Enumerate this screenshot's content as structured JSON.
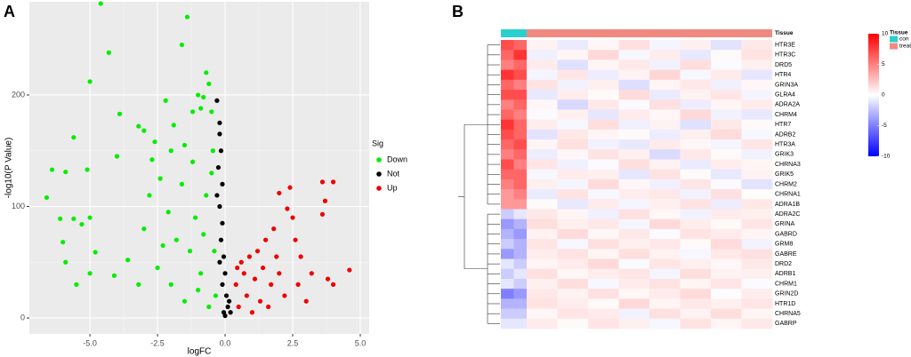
{
  "chart_data": [
    {
      "type": "scatter",
      "panel": "A",
      "xlabel": "logFC",
      "ylabel": "-log10(P Value)",
      "legend_title": "Sig",
      "xlim": [
        -7.24,
        5.33
      ],
      "ylim": [
        -14.3,
        283.6
      ],
      "xticks": [
        {
          "value": -5,
          "label": "-5.0"
        },
        -2.5,
        {
          "value": 0,
          "label": "0.0"
        },
        2.5,
        {
          "value": 5,
          "label": "5.0"
        }
      ],
      "yticks": [
        0,
        100,
        200
      ],
      "grid": true,
      "series": [
        {
          "name": "Down",
          "color": "#00ee00",
          "x": [
            -4.6,
            -4.3,
            -1.4,
            -1.6,
            -0.7,
            -0.6,
            -5.0,
            -3.9,
            -3.2,
            -3.0,
            -2.6,
            -2.2,
            -1.9,
            -1.2,
            -1.0,
            -0.9,
            -0.8,
            -0.5,
            -5.6,
            -6.4,
            -5.1,
            -5.9,
            -4.0,
            -2.7,
            -2.0,
            -1.5,
            -6.6,
            -6.1,
            -5.6,
            -5.3,
            -6.0,
            -5.0,
            -4.8,
            -5.9,
            -5.0,
            -5.5,
            -4.1,
            -3.6,
            -3.0,
            -2.8,
            -2.4,
            -2.1,
            -1.8,
            -1.6,
            -1.3,
            -1.1,
            -0.9,
            -0.7,
            -0.5,
            -0.4,
            -0.35,
            -0.6,
            -1.0,
            -1.5,
            -2.0,
            -2.5,
            -3.2,
            -1.2,
            -0.45,
            -2.3,
            -0.8
          ],
          "values": [
            282,
            238,
            270,
            245,
            220,
            210,
            212,
            183,
            172,
            168,
            158,
            195,
            173,
            185,
            200,
            188,
            198,
            185,
            162,
            133,
            133,
            131,
            145,
            142,
            150,
            155,
            108,
            89,
            89,
            84,
            68,
            90,
            59,
            50,
            40,
            30,
            38,
            52,
            80,
            110,
            125,
            95,
            70,
            120,
            60,
            90,
            40,
            110,
            130,
            60,
            20,
            10,
            25,
            15,
            30,
            45,
            30,
            140,
            150,
            65,
            75
          ]
        },
        {
          "name": "Not",
          "color": "#000000",
          "x": [
            -0.3,
            -0.2,
            -0.2,
            -0.15,
            -0.25,
            -0.1,
            -0.2,
            -0.1,
            -0.15,
            -0.05,
            0.0,
            -0.1,
            0.05,
            0.1,
            -0.05,
            0.15,
            0.2,
            0.0,
            -0.2,
            -0.3
          ],
          "values": [
            195,
            175,
            165,
            150,
            135,
            120,
            100,
            85,
            70,
            55,
            40,
            30,
            20,
            10,
            5,
            15,
            5,
            2,
            50,
            110
          ]
        },
        {
          "name": "Up",
          "color": "#ee0000",
          "x": [
            3.6,
            4.0,
            3.7,
            2.4,
            2.0,
            3.6,
            2.3,
            2.5,
            4.6,
            3.8,
            4.0,
            3.2,
            2.8,
            2.6,
            1.8,
            1.5,
            1.2,
            0.9,
            0.6,
            0.4,
            0.5,
            0.8,
            1.1,
            1.4,
            1.7,
            2.0,
            2.2,
            1.6,
            1.0,
            0.7,
            1.3,
            2.7,
            3.0,
            0.45,
            1.9
          ],
          "values": [
            122,
            122,
            105,
            117,
            112,
            93,
            98,
            90,
            43,
            35,
            30,
            40,
            55,
            70,
            80,
            70,
            60,
            55,
            50,
            30,
            10,
            20,
            35,
            45,
            30,
            40,
            20,
            10,
            5,
            40,
            15,
            30,
            15,
            45,
            55
          ]
        }
      ]
    },
    {
      "type": "heatmap",
      "panel": "B",
      "rows": [
        "HTR3E",
        "HTR3C",
        "DRD5",
        "HTR4",
        "GRIN3A",
        "GLRA4",
        "ADRA2A",
        "CHRM4",
        "HTR7",
        "ADRB2",
        "HTR3A",
        "GRIK3",
        "CHRNA3",
        "GRIK5",
        "CHRM2",
        "CHRNA1",
        "ADRA1B",
        "ADRA2C",
        "GRINA",
        "GABRD",
        "GRM8",
        "GABRE",
        "DRD2",
        "ADRB1",
        "CHRM1",
        "GRIN2D",
        "HTR1D",
        "CHRNA5",
        "GABRP"
      ],
      "annotation": {
        "title": "Tissue",
        "levels": [
          {
            "name": "con",
            "color": "#2ad0d0"
          },
          {
            "name": "treat",
            "color": "#f08a80"
          }
        ],
        "columns": [
          "con",
          "con",
          "treat",
          "treat",
          "treat",
          "treat",
          "treat",
          "treat",
          "treat",
          "treat"
        ]
      },
      "clim": [
        -10,
        10
      ],
      "cticks": [
        10,
        5,
        0,
        -5,
        -10
      ],
      "colors": [
        "#0000ff",
        "#ffffff",
        "#ff0000"
      ],
      "values": [
        [
          7,
          6,
          0.5,
          -0.8,
          0.3,
          1.2,
          -0.4,
          0.6,
          -1.1,
          0.9
        ],
        [
          6,
          8,
          -0.6,
          0.4,
          1.5,
          -0.3,
          0.7,
          -0.9,
          0.2,
          1.1
        ],
        [
          5,
          6,
          0.8,
          -1.2,
          0.4,
          0.9,
          -0.5,
          1.3,
          -0.2,
          0.6
        ],
        [
          8,
          7,
          -0.4,
          1.0,
          -0.7,
          0.5,
          1.6,
          -0.3,
          0.8,
          -1.0
        ],
        [
          6,
          5,
          1.1,
          -0.5,
          0.6,
          -1.3,
          0.4,
          0.9,
          -0.6,
          0.3
        ],
        [
          7,
          7,
          -0.9,
          0.7,
          0.2,
          1.4,
          -0.8,
          0.5,
          1.0,
          -0.4
        ],
        [
          5,
          6,
          0.3,
          -1.5,
          0.9,
          -0.2,
          1.2,
          -0.7,
          0.4,
          0.8
        ],
        [
          6,
          5,
          -0.2,
          0.6,
          -1.0,
          0.8,
          0.3,
          1.5,
          -0.5,
          -0.9
        ],
        [
          8,
          6,
          0.7,
          -0.3,
          1.3,
          -0.6,
          0.5,
          -1.2,
          0.9,
          0.2
        ],
        [
          7,
          6,
          -1.1,
          0.9,
          0.4,
          0.2,
          -0.7,
          0.6,
          1.4,
          -0.3
        ],
        [
          6,
          7,
          0.4,
          1.2,
          -0.5,
          -0.9,
          0.8,
          0.3,
          -0.4,
          1.0
        ],
        [
          5,
          6,
          -0.7,
          0.3,
          1.1,
          0.6,
          -1.4,
          0.9,
          0.2,
          -0.5
        ],
        [
          7,
          5,
          1.0,
          -0.6,
          -0.2,
          1.3,
          0.5,
          -0.8,
          0.7,
          0.4
        ],
        [
          6,
          6,
          -0.3,
          0.8,
          0.6,
          -1.0,
          1.1,
          0.2,
          -0.9,
          0.5
        ],
        [
          5,
          6,
          0.6,
          -0.4,
          1.4,
          0.3,
          -0.6,
          1.0,
          -0.2,
          -1.1
        ],
        [
          4,
          5,
          -0.8,
          1.1,
          -0.3,
          0.7,
          0.9,
          -0.5,
          1.2,
          0.1
        ],
        [
          4,
          4,
          0.2,
          -0.9,
          0.8,
          -0.4,
          0.6,
          1.1,
          -0.7,
          0.9
        ],
        [
          -2,
          -1,
          0.9,
          0.4,
          -0.6,
          1.2,
          0.3,
          -0.5,
          0.8,
          0.6
        ],
        [
          -4,
          -3,
          1.3,
          0.6,
          0.9,
          -0.4,
          1.5,
          0.7,
          0.2,
          1.0
        ],
        [
          -3,
          -4,
          0.5,
          1.4,
          0.3,
          0.9,
          -0.2,
          1.1,
          0.8,
          0.4
        ],
        [
          -2,
          -3,
          1.0,
          -0.3,
          1.2,
          0.6,
          0.9,
          0.2,
          1.4,
          -0.5
        ],
        [
          -4,
          -3,
          0.7,
          1.1,
          0.4,
          1.3,
          0.5,
          -0.3,
          0.9,
          1.2
        ],
        [
          -1,
          -2,
          0.4,
          0.8,
          1.5,
          -0.2,
          1.0,
          0.6,
          0.3,
          0.9
        ],
        [
          -2,
          -1,
          1.2,
          0.3,
          0.7,
          1.0,
          -0.4,
          1.3,
          0.5,
          0.6
        ],
        [
          -1,
          -2,
          0.6,
          1.3,
          -0.3,
          0.8,
          1.1,
          0.4,
          1.0,
          -0.2
        ],
        [
          -5,
          -4,
          0.9,
          0.5,
          1.2,
          0.3,
          0.8,
          1.4,
          -0.1,
          0.7
        ],
        [
          -3,
          -3,
          1.1,
          0.7,
          0.2,
          1.5,
          0.4,
          0.9,
          0.6,
          1.0
        ],
        [
          -2,
          -2,
          0.3,
          1.0,
          0.8,
          -0.5,
          1.2,
          0.5,
          1.3,
          0.4
        ],
        [
          -1,
          -1,
          0.8,
          0.2,
          1.0,
          0.6,
          -0.3,
          1.1,
          0.4,
          0.9
        ]
      ]
    }
  ]
}
